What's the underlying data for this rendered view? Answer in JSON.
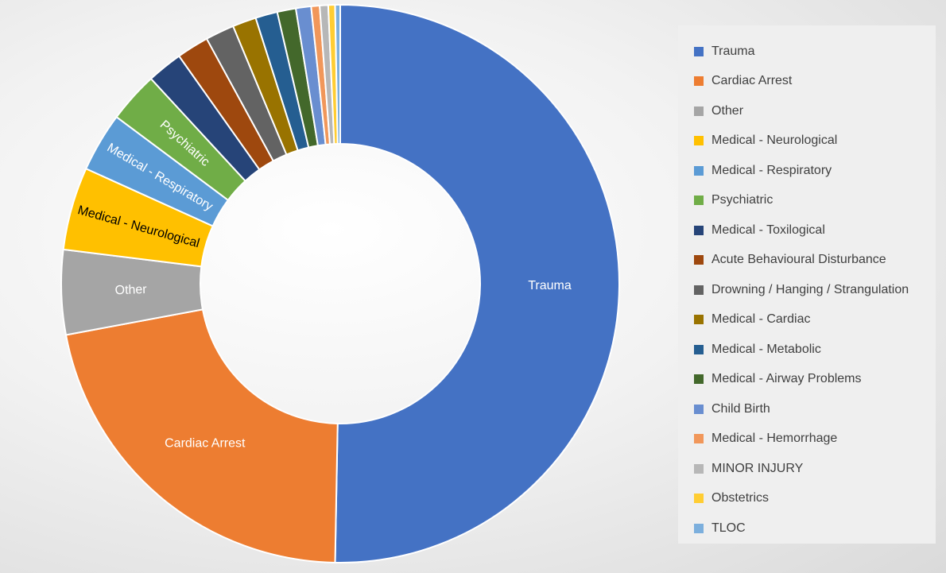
{
  "chart_data": {
    "type": "pie",
    "title": "",
    "legend_position": "right",
    "series": [
      {
        "labels": [
          "Trauma",
          "Cardiac Arrest",
          "Other",
          "Medical - Neurological",
          "Medical - Respiratory",
          "Psychiatric",
          "Medical - Toxilogical",
          "Acute Behavioural Disturbance",
          "Drowning / Hanging / Strangulation",
          "Medical - Cardiac",
          "Medical - Metabolic",
          "Medical - Airway Problems",
          "Child Birth",
          "Medical - Hemorrhage",
          "MINOR INJURY",
          "Obstetrics",
          "TLOC"
        ],
        "values": [
          51.3,
          22.2,
          5.0,
          4.9,
          3.5,
          3.0,
          2.1,
          1.9,
          1.7,
          1.4,
          1.3,
          1.1,
          0.9,
          0.5,
          0.5,
          0.4,
          0.3
        ],
        "colors": [
          "#4472C4",
          "#ED7D31",
          "#A5A5A5",
          "#FFC000",
          "#5B9BD5",
          "#70AD47",
          "#264478",
          "#9E480E",
          "#636363",
          "#997300",
          "#255E91",
          "#43682B",
          "#698ED0",
          "#F1975A",
          "#B7B7B7",
          "#FFCD33",
          "#7CAFDD"
        ],
        "slice_labels": [
          "Trauma",
          "Cardiac Arrest",
          "Other",
          "Medical - Neurological",
          "Medical - Respiratory",
          "Psychiatric",
          "",
          "",
          "",
          "",
          "",
          "",
          "",
          "",
          "",
          "",
          ""
        ],
        "slice_label_colors": [
          "#ffffff",
          "#ffffff",
          "#ffffff",
          "#000000",
          "#ffffff",
          "#ffffff",
          "#ffffff",
          "#ffffff",
          "#ffffff",
          "#ffffff",
          "#ffffff",
          "#ffffff",
          "#ffffff",
          "#ffffff",
          "#ffffff",
          "#ffffff",
          "#ffffff"
        ]
      }
    ]
  }
}
